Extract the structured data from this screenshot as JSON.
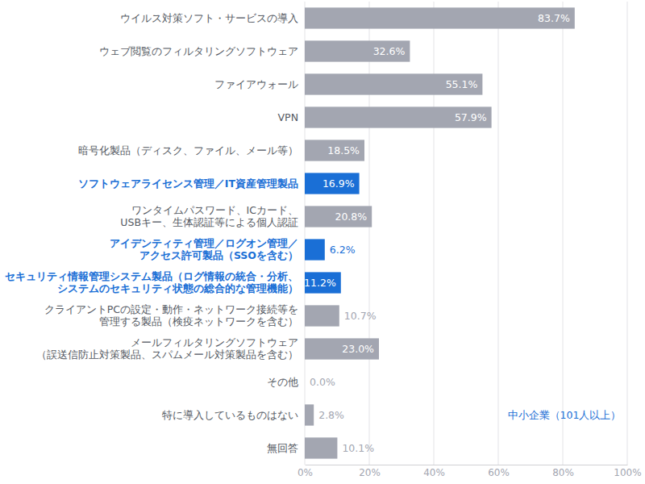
{
  "chart_data": {
    "type": "bar",
    "orientation": "horizontal",
    "categories": [
      "ウイルス対策ソフト・サービスの導入",
      "ウェブ閲覧のフィルタリングソフトウェア",
      "ファイアウォール",
      "VPN",
      "暗号化製品（ディスク、ファイル、メール等）",
      "ソフトウェアライセンス管理／IT資産管理製品",
      "ワンタイムパスワード、ICカード、\nUSBキー、生体認証等による個人認証",
      "アイデンティティ管理／ログオン管理／\nアクセス許可製品（SSOを含む）",
      "セキュリティ情報管理システム製品（ログ情報の統合・分析、\nシステムのセキュリティ状態の総合的な管理機能）",
      "クライアントPCの設定・動作・ネットワーク接続等を\n管理する製品（検疫ネットワークを含む）",
      "メールフィルタリングソフトウェア\n（誤送信防止対策製品、スパムメール対策製品を含む）",
      "その他",
      "特に導入しているものはない",
      "無回答"
    ],
    "values": [
      83.7,
      32.6,
      55.1,
      57.9,
      18.5,
      16.9,
      20.8,
      6.2,
      11.2,
      10.7,
      23.0,
      0.0,
      2.8,
      10.1
    ],
    "value_labels": [
      "83.7%",
      "32.6%",
      "55.1%",
      "57.9%",
      "18.5%",
      "16.9%",
      "20.8%",
      "6.2%",
      "11.2%",
      "10.7%",
      "23.0%",
      "0.0%",
      "2.8%",
      "10.1%"
    ],
    "colors": [
      "#a3a6b1",
      "#a3a6b1",
      "#a3a6b1",
      "#a3a6b1",
      "#a3a6b1",
      "#1a6fd6",
      "#a3a6b1",
      "#1a6fd6",
      "#1a6fd6",
      "#a3a6b1",
      "#a3a6b1",
      "#a3a6b1",
      "#a3a6b1",
      "#a3a6b1"
    ],
    "xlim": [
      0,
      100
    ],
    "xticks": [
      {
        "value": 0,
        "label": "0%"
      },
      {
        "value": 20,
        "label": "20%"
      },
      {
        "value": 40,
        "label": "40%"
      },
      {
        "value": 60,
        "label": "60%"
      },
      {
        "value": 80,
        "label": "80%"
      },
      {
        "value": 100,
        "label": "100%"
      }
    ],
    "grid": true,
    "data_labels": true,
    "annotations": [
      {
        "text": "中小企業（101人以上）"
      }
    ]
  }
}
